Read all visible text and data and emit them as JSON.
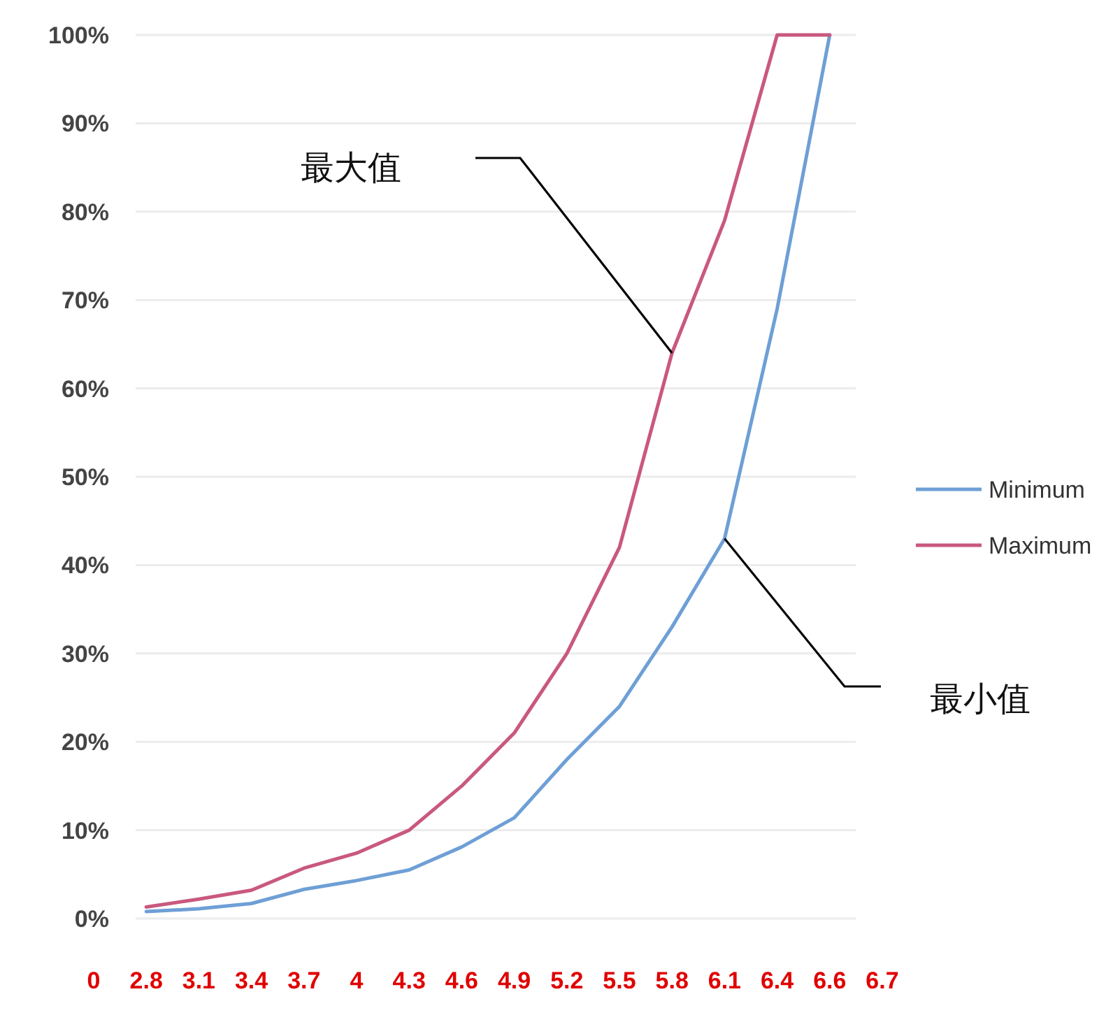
{
  "chart_data": {
    "type": "line",
    "categories": [
      "0",
      "2.8",
      "3.1",
      "3.4",
      "3.7",
      "4",
      "4.3",
      "4.6",
      "4.9",
      "5.2",
      "5.5",
      "5.8",
      "6.1",
      "6.4",
      "6.6",
      "6.7"
    ],
    "series": [
      {
        "name": "Minimum",
        "color": "#6e9fd6",
        "values": [
          null,
          0.8,
          1.1,
          1.7,
          3.3,
          4.3,
          5.5,
          8.1,
          11.4,
          18,
          24,
          33,
          43,
          69,
          100,
          null
        ]
      },
      {
        "name": "Maximum",
        "color": "#c9587f",
        "values": [
          null,
          1.3,
          2.2,
          3.2,
          5.7,
          7.4,
          10,
          15,
          21,
          30,
          42,
          64,
          79,
          100,
          100,
          null
        ]
      }
    ],
    "ylim": [
      0,
      100
    ],
    "yticks": [
      {
        "value": 0,
        "label": "0%"
      },
      {
        "value": 10,
        "label": "10%"
      },
      {
        "value": 20,
        "label": "20%"
      },
      {
        "value": 30,
        "label": "30%"
      },
      {
        "value": 40,
        "label": "40%"
      },
      {
        "value": 50,
        "label": "50%"
      },
      {
        "value": 60,
        "label": "60%"
      },
      {
        "value": 70,
        "label": "70%"
      },
      {
        "value": 80,
        "label": "80%"
      },
      {
        "value": 90,
        "label": "90%"
      },
      {
        "value": 100,
        "label": "100%"
      }
    ],
    "grid": "y",
    "legend": "right",
    "marker": "none",
    "line_style": "solid",
    "annotations": [
      "最大值",
      "最小值"
    ]
  }
}
